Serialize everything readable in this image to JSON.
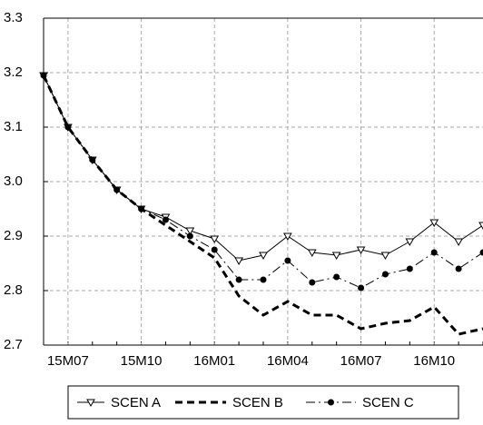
{
  "chart_data": {
    "type": "line",
    "categories": [
      null,
      "15M07",
      null,
      null,
      "15M10",
      null,
      null,
      "16M01",
      null,
      null,
      "16M04",
      null,
      null,
      "16M07",
      null,
      null,
      "16M10",
      null,
      null
    ],
    "series": [
      {
        "name": "SCEN A",
        "color": "#000000",
        "dash": "solid",
        "marker": "triangle-down",
        "values": [
          3.195,
          3.1,
          3.04,
          2.985,
          2.95,
          2.935,
          2.91,
          2.895,
          2.855,
          2.865,
          2.9,
          2.87,
          2.865,
          2.875,
          2.865,
          2.89,
          2.925,
          2.89,
          2.92
        ]
      },
      {
        "name": "SCEN B",
        "color": "#000000",
        "dash": "dashed",
        "marker": "none",
        "values": [
          3.195,
          3.1,
          3.04,
          2.985,
          2.95,
          2.92,
          2.89,
          2.86,
          2.79,
          2.755,
          2.78,
          2.755,
          2.755,
          2.73,
          2.74,
          2.745,
          2.77,
          2.72,
          2.73
        ]
      },
      {
        "name": "SCEN C",
        "color": "#000000",
        "dash": "dashdot",
        "marker": "circle",
        "values": [
          3.195,
          3.1,
          3.04,
          2.985,
          2.95,
          2.93,
          2.9,
          2.875,
          2.82,
          2.82,
          2.855,
          2.815,
          2.825,
          2.805,
          2.83,
          2.84,
          2.87,
          2.84,
          2.87
        ]
      }
    ],
    "ylim": [
      2.7,
      3.3
    ],
    "yticks": [
      2.7,
      2.8,
      2.9,
      {
        "value": 3.0,
        "label": "3.0"
      },
      3.1,
      3.2,
      3.3
    ],
    "grid": true,
    "legend": "bottom"
  }
}
